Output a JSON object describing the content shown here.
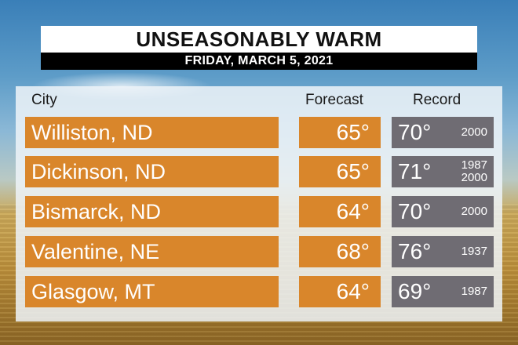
{
  "title": "UNSEASONABLY WARM",
  "date": "FRIDAY, MARCH 5, 2021",
  "headers": {
    "city": "City",
    "forecast": "Forecast",
    "record": "Record"
  },
  "rows": [
    {
      "city": "Williston, ND",
      "forecast": "65°",
      "record": "70°",
      "years": [
        "2000"
      ]
    },
    {
      "city": "Dickinson, ND",
      "forecast": "65°",
      "record": "71°",
      "years": [
        "1987",
        "2000"
      ]
    },
    {
      "city": "Bismarck, ND",
      "forecast": "64°",
      "record": "70°",
      "years": [
        "2000"
      ]
    },
    {
      "city": "Valentine, NE",
      "forecast": "68°",
      "record": "76°",
      "years": [
        "1937"
      ]
    },
    {
      "city": "Glasgow, MT",
      "forecast": "64°",
      "record": "69°",
      "years": [
        "1987"
      ]
    }
  ],
  "colors": {
    "forecast_cell": "#d9862b",
    "record_cell": "#6f6c73"
  }
}
